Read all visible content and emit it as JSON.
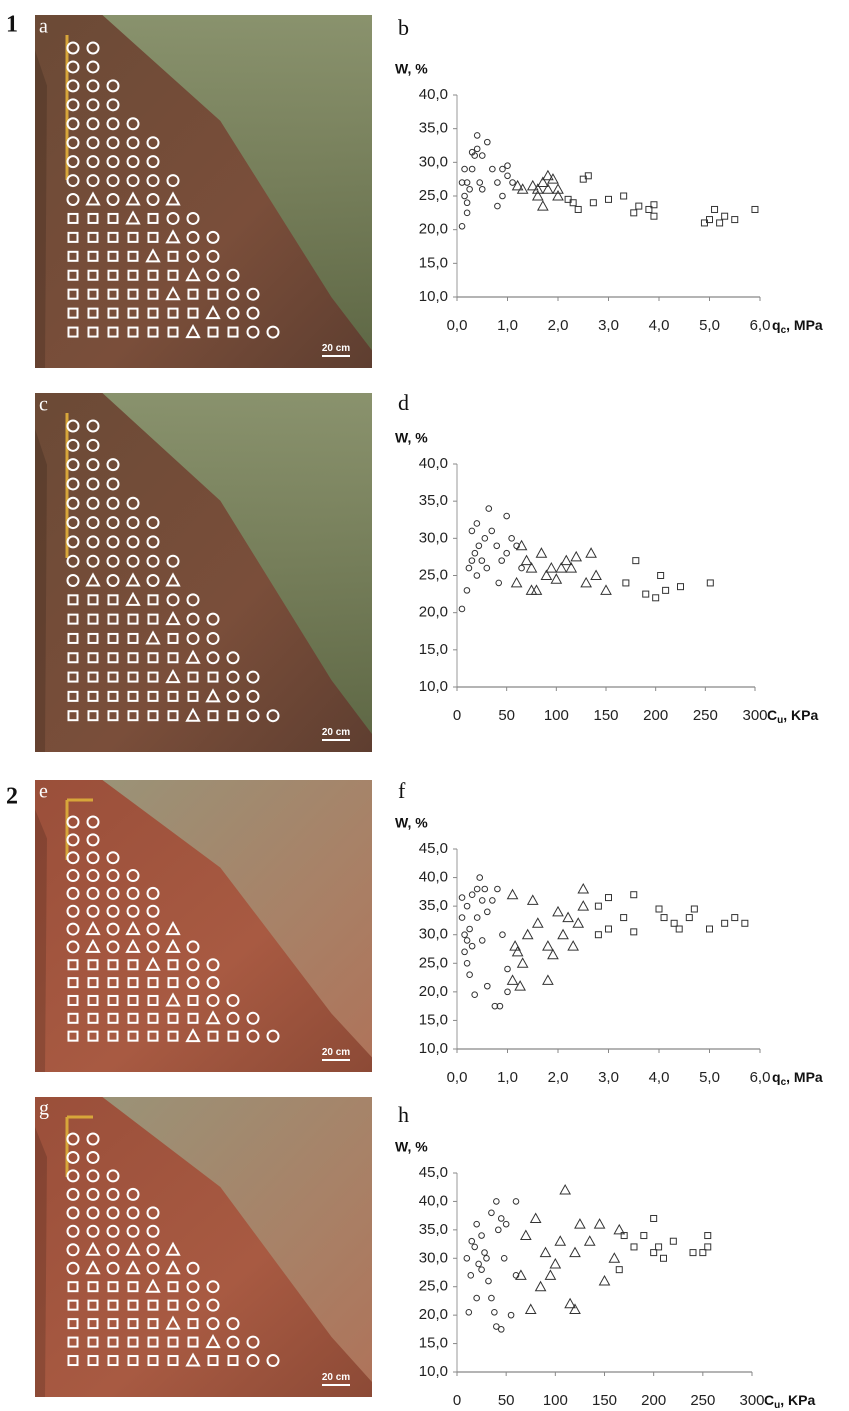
{
  "figure_labels": [
    "1",
    "2"
  ],
  "photos": [
    {
      "label": "a",
      "scale": "20 cm"
    },
    {
      "label": "c",
      "scale": "20 cm"
    },
    {
      "label": "e",
      "scale": "20 cm"
    },
    {
      "label": "g",
      "scale": "20 cm"
    }
  ],
  "chart_data": [
    {
      "type": "scatter",
      "panel": "b",
      "y_label": "W, %",
      "x_label": {
        "symbol": "q",
        "subscript": "c",
        "unit": ", MPa"
      },
      "xlim": [
        0,
        6
      ],
      "xticks": [
        {
          "value": 0,
          "label": "0,0"
        },
        {
          "value": 1,
          "label": "1,0"
        },
        {
          "value": 2,
          "label": "2,0"
        },
        {
          "value": 3,
          "label": "3,0"
        },
        {
          "value": 4,
          "label": "4,0"
        },
        {
          "value": 5,
          "label": "5,0"
        },
        {
          "value": 6,
          "label": "6,0"
        }
      ],
      "ylim": [
        10,
        40
      ],
      "yticks": [
        {
          "value": 10,
          "label": "10,0"
        },
        {
          "value": 15,
          "label": "15,0"
        },
        {
          "value": 20,
          "label": "20,0"
        },
        {
          "value": 25,
          "label": "25,0"
        },
        {
          "value": 30,
          "label": "30,0"
        },
        {
          "value": 35,
          "label": "35,0"
        },
        {
          "value": 40,
          "label": "40,0"
        }
      ],
      "series": [
        {
          "marker": "circle",
          "color": "#333",
          "x": [
            0.1,
            0.15,
            0.2,
            0.2,
            0.25,
            0.3,
            0.35,
            0.4,
            0.4,
            0.5,
            0.45,
            0.5,
            0.6,
            0.7,
            0.8,
            0.8,
            0.9,
            1.0,
            1.0,
            1.1,
            0.9,
            0.1,
            0.15,
            0.3,
            0.2
          ],
          "values": [
            27,
            25,
            22.5,
            24,
            26,
            29,
            31,
            34,
            32,
            31,
            27,
            26,
            33,
            29,
            27,
            23.5,
            29,
            29.5,
            28,
            27,
            25,
            20.5,
            29,
            31.5,
            27
          ]
        },
        {
          "marker": "triangle",
          "color": "#333",
          "x": [
            1.3,
            1.5,
            1.6,
            1.7,
            1.7,
            1.8,
            1.8,
            1.9,
            2.0,
            2.0,
            1.6,
            1.2
          ],
          "values": [
            26,
            26.5,
            25,
            23.5,
            27,
            28,
            26,
            27.5,
            26,
            25,
            26,
            26.5
          ]
        },
        {
          "marker": "square",
          "color": "#333",
          "x": [
            2.2,
            2.3,
            2.4,
            2.5,
            2.6,
            2.7,
            3.0,
            3.3,
            3.5,
            3.6,
            3.8,
            3.9,
            3.9,
            4.9,
            5.0,
            5.1,
            5.2,
            5.3,
            5.5,
            5.9
          ],
          "values": [
            24.5,
            24,
            23,
            27.5,
            28,
            24,
            24.5,
            25,
            22.5,
            23.5,
            23,
            22,
            23.7,
            21,
            21.5,
            23,
            21,
            22,
            21.5,
            23
          ]
        }
      ]
    },
    {
      "type": "scatter",
      "panel": "d",
      "y_label": "W, %",
      "x_label": {
        "symbol": "C",
        "subscript": "u",
        "unit": ", KPa"
      },
      "xlim": [
        0,
        300
      ],
      "xticks": [
        0,
        50,
        100,
        150,
        200,
        250,
        300
      ],
      "ylim": [
        10,
        40
      ],
      "yticks": [
        {
          "value": 10,
          "label": "10,0"
        },
        {
          "value": 15,
          "label": "15,0"
        },
        {
          "value": 20,
          "label": "20,0"
        },
        {
          "value": 25,
          "label": "25,0"
        },
        {
          "value": 30,
          "label": "30,0"
        },
        {
          "value": 35,
          "label": "35,0"
        },
        {
          "value": 40,
          "label": "40,0"
        }
      ],
      "series": [
        {
          "marker": "circle",
          "color": "#333",
          "x": [
            5,
            10,
            12,
            15,
            15,
            18,
            20,
            20,
            22,
            25,
            28,
            30,
            32,
            35,
            40,
            42,
            45,
            50,
            50,
            55,
            60,
            65
          ],
          "values": [
            20.5,
            23,
            26,
            31,
            27,
            28,
            25,
            32,
            29,
            27,
            30,
            26,
            34,
            31,
            29,
            24,
            27,
            28,
            33,
            30,
            29,
            26
          ]
        },
        {
          "marker": "triangle",
          "color": "#333",
          "x": [
            60,
            65,
            70,
            75,
            75,
            80,
            85,
            90,
            95,
            100,
            105,
            110,
            115,
            120,
            130,
            135,
            140,
            150
          ],
          "values": [
            24,
            29,
            27,
            26,
            23,
            23,
            28,
            25,
            26,
            24.5,
            26,
            27,
            26,
            27.5,
            24,
            28,
            25,
            23
          ]
        },
        {
          "marker": "square",
          "color": "#333",
          "x": [
            170,
            180,
            190,
            200,
            205,
            210,
            225,
            255
          ],
          "values": [
            24,
            27,
            22.5,
            22,
            25,
            23,
            23.5,
            24
          ]
        }
      ]
    },
    {
      "type": "scatter",
      "panel": "f",
      "y_label": "W, %",
      "x_label": {
        "symbol": "q",
        "subscript": "c",
        "unit": ", MPa"
      },
      "xlim": [
        0,
        6
      ],
      "xticks": [
        {
          "value": 0,
          "label": "0,0"
        },
        {
          "value": 1,
          "label": "1,0"
        },
        {
          "value": 2,
          "label": "2,0"
        },
        {
          "value": 3,
          "label": "3,0"
        },
        {
          "value": 4,
          "label": "4,0"
        },
        {
          "value": 5,
          "label": "5,0"
        },
        {
          "value": 6,
          "label": "6,0"
        }
      ],
      "ylim": [
        10,
        45
      ],
      "yticks": [
        {
          "value": 10,
          "label": "10,0"
        },
        {
          "value": 15,
          "label": "15,0"
        },
        {
          "value": 20,
          "label": "20,0"
        },
        {
          "value": 25,
          "label": "25,0"
        },
        {
          "value": 30,
          "label": "30,0"
        },
        {
          "value": 35,
          "label": "35,0"
        },
        {
          "value": 40,
          "label": "40,0"
        },
        {
          "value": 45,
          "label": "45,0"
        }
      ],
      "series": [
        {
          "marker": "circle",
          "color": "#333",
          "x": [
            0.1,
            0.15,
            0.15,
            0.2,
            0.2,
            0.25,
            0.3,
            0.3,
            0.35,
            0.4,
            0.4,
            0.45,
            0.5,
            0.5,
            0.55,
            0.6,
            0.6,
            0.7,
            0.75,
            0.8,
            0.85,
            0.9,
            1.0,
            1.0,
            0.2,
            0.1,
            0.25
          ],
          "values": [
            33,
            30,
            27,
            35,
            25,
            31,
            28,
            37,
            19.5,
            33,
            38,
            40,
            36,
            29,
            38,
            34,
            21,
            36,
            17.5,
            38,
            17.5,
            30,
            20,
            24,
            29,
            36.5,
            23
          ]
        },
        {
          "marker": "triangle",
          "color": "#333",
          "x": [
            1.1,
            1.15,
            1.2,
            1.25,
            1.3,
            1.4,
            1.5,
            1.1,
            1.6,
            1.8,
            1.8,
            1.9,
            2.0,
            2.1,
            2.2,
            2.3,
            2.4,
            2.5,
            2.5
          ],
          "values": [
            22,
            28,
            27,
            21,
            25,
            30,
            36,
            37,
            32,
            28,
            22,
            26.5,
            34,
            30,
            33,
            28,
            32,
            38,
            35
          ]
        },
        {
          "marker": "square",
          "color": "#333",
          "x": [
            2.8,
            2.8,
            3.0,
            3.0,
            3.3,
            3.5,
            3.5,
            4.0,
            4.1,
            4.3,
            4.4,
            4.6,
            4.7,
            5.0,
            5.3,
            5.5,
            5.7
          ],
          "values": [
            35,
            30,
            36.5,
            31,
            33,
            37,
            30.5,
            34.5,
            33,
            32,
            31,
            33,
            34.5,
            31,
            32,
            33,
            32
          ]
        }
      ]
    },
    {
      "type": "scatter",
      "panel": "h",
      "y_label": "W, %",
      "x_label": {
        "symbol": "C",
        "subscript": "u",
        "unit": ", KPa"
      },
      "xlim": [
        0,
        300
      ],
      "xticks": [
        0,
        50,
        100,
        150,
        200,
        250,
        300
      ],
      "ylim": [
        10,
        45
      ],
      "yticks": [
        {
          "value": 10,
          "label": "10,0"
        },
        {
          "value": 15,
          "label": "15,0"
        },
        {
          "value": 20,
          "label": "20,0"
        },
        {
          "value": 25,
          "label": "25,0"
        },
        {
          "value": 30,
          "label": "30,0"
        },
        {
          "value": 35,
          "label": "35,0"
        },
        {
          "value": 40,
          "label": "40,0"
        },
        {
          "value": 45,
          "label": "45,0"
        }
      ],
      "series": [
        {
          "marker": "circle",
          "color": "#333",
          "x": [
            10,
            12,
            14,
            15,
            18,
            20,
            22,
            25,
            25,
            28,
            30,
            32,
            35,
            35,
            38,
            40,
            40,
            42,
            45,
            45,
            48,
            50,
            55,
            60,
            60,
            20
          ],
          "values": [
            30,
            20.5,
            27,
            33,
            32,
            36,
            29,
            34,
            28,
            31,
            30,
            26,
            38,
            23,
            20.5,
            40,
            18,
            35,
            37,
            17.5,
            30,
            36,
            20,
            40,
            27,
            23
          ]
        },
        {
          "marker": "triangle",
          "color": "#333",
          "x": [
            65,
            70,
            75,
            80,
            85,
            90,
            95,
            100,
            105,
            110,
            115,
            120,
            120,
            125,
            135,
            145,
            150,
            160,
            165
          ],
          "values": [
            27,
            34,
            21,
            37,
            25,
            31,
            27,
            29,
            33,
            42,
            22,
            21,
            31,
            36,
            33,
            36,
            26,
            30,
            35
          ]
        },
        {
          "marker": "square",
          "color": "#333",
          "x": [
            165,
            170,
            180,
            190,
            200,
            200,
            205,
            210,
            220,
            240,
            250,
            255,
            255
          ],
          "values": [
            28,
            34,
            32,
            34,
            31,
            37,
            32,
            30,
            33,
            31,
            31,
            34,
            32
          ]
        }
      ]
    }
  ]
}
